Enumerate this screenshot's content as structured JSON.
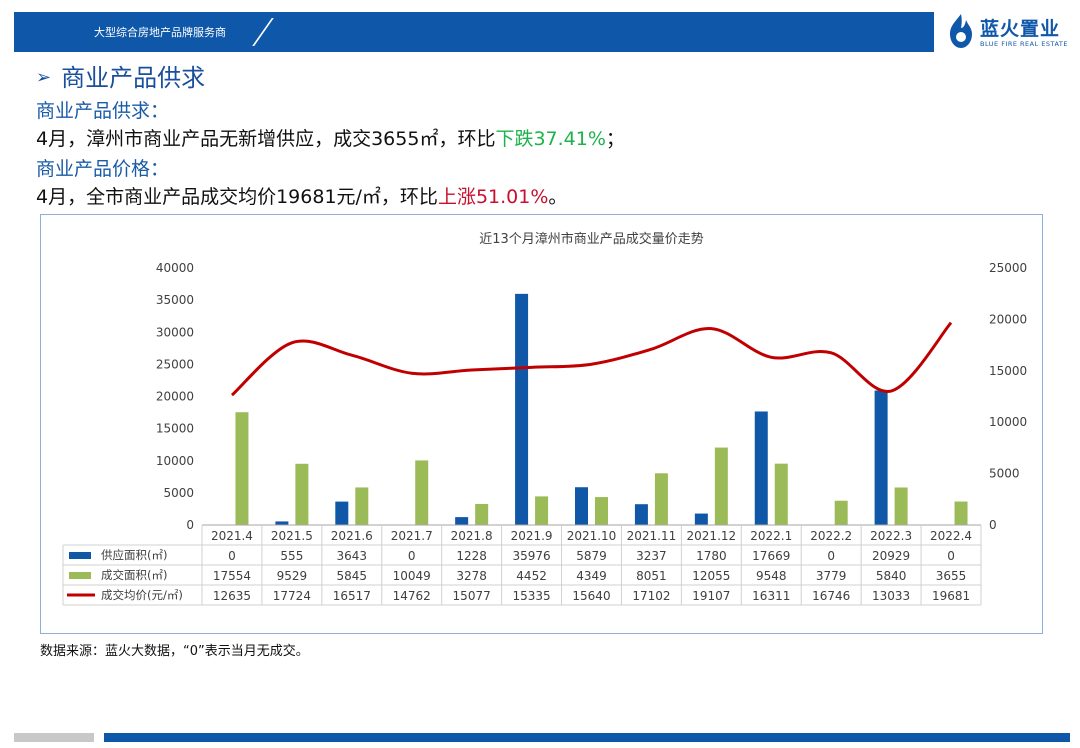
{
  "header": {
    "tagline": "大型综合房地产品牌服务商",
    "brand": "蓝火置业",
    "brand_en": "BLUE FIRE REAL ESTATE"
  },
  "page": {
    "title": "商业产品供求",
    "supply_heading": "商业产品供求：",
    "supply_text_a": "4月，漳州市商业产品无新增供应，成交3655㎡，环比",
    "supply_text_b": "下跌37.41%",
    "supply_text_c": "；",
    "price_heading": "商业产品价格：",
    "price_text_a": "4月，全市商业产品成交均价19681元/㎡，环比",
    "price_text_b": "上涨51.01%",
    "price_text_c": "。",
    "source": "数据来源：蓝火大数据，“0”表示当月无成交。"
  },
  "colors": {
    "supply": "#1057a8",
    "deal": "#9bbb59",
    "price": "#c00000",
    "header": "#0f57a8"
  },
  "chart_data": {
    "type": "bar",
    "title": "近13个月漳州市商业产品成交量价走势",
    "categories": [
      "2021.4",
      "2021.5",
      "2021.6",
      "2021.7",
      "2021.8",
      "2021.9",
      "2021.10",
      "2021.11",
      "2021.12",
      "2022.1",
      "2022.2",
      "2022.3",
      "2022.4"
    ],
    "series": [
      {
        "name": "供应面积(㎡)",
        "kind": "bar",
        "axis": "left",
        "values": [
          0,
          555,
          3643,
          0,
          1228,
          35976,
          5879,
          3237,
          1780,
          17669,
          0,
          20929,
          0
        ]
      },
      {
        "name": "成交面积(㎡)",
        "kind": "bar",
        "axis": "left",
        "values": [
          17554,
          9529,
          5845,
          10049,
          3278,
          4452,
          4349,
          8051,
          12055,
          9548,
          3779,
          5840,
          3655
        ]
      },
      {
        "name": "成交均价(元/㎡)",
        "kind": "line",
        "axis": "right",
        "values": [
          12635,
          17724,
          16517,
          14762,
          15077,
          15335,
          15640,
          17102,
          19107,
          16311,
          16746,
          13033,
          19681
        ]
      }
    ],
    "ylim_left": [
      0,
      40000
    ],
    "ylim_right": [
      0,
      25000
    ],
    "yticks_left": [
      0,
      5000,
      10000,
      15000,
      20000,
      25000,
      30000,
      35000,
      40000
    ],
    "yticks_right": [
      0,
      5000,
      10000,
      15000,
      20000,
      25000
    ],
    "legend": "bottom-table",
    "grid": false
  }
}
